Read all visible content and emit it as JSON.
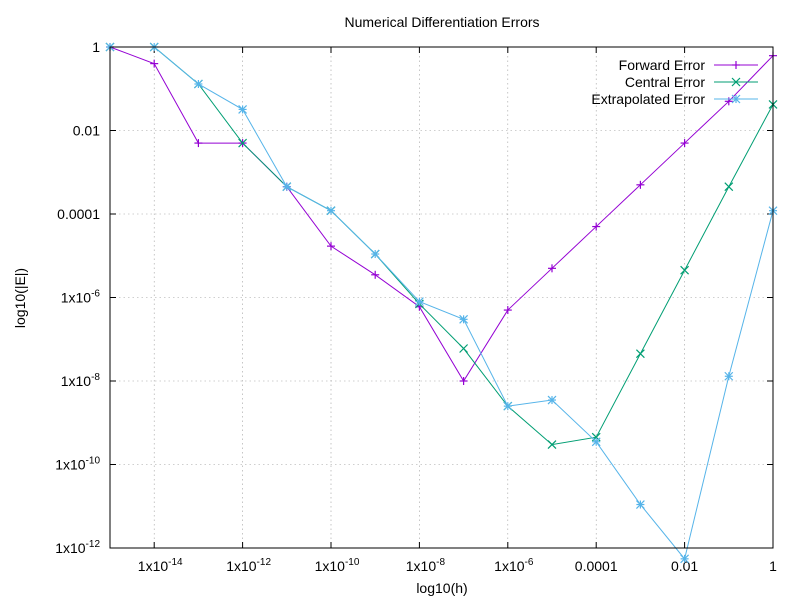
{
  "chart_data": {
    "type": "line",
    "title": "Numerical Differentiation Errors",
    "xlabel": "log10(h)",
    "ylabel": "log10(|E|)",
    "x_scale": "log",
    "y_scale": "log",
    "xlim": [
      1e-15,
      1
    ],
    "ylim": [
      1e-12,
      1
    ],
    "x_ticks": [
      {
        "value": 1e-14,
        "label": "1x10",
        "exp": "-14"
      },
      {
        "value": 1e-12,
        "label": "1x10",
        "exp": "-12"
      },
      {
        "value": 1e-10,
        "label": "1x10",
        "exp": "-10"
      },
      {
        "value": 1e-08,
        "label": "1x10",
        "exp": "-8"
      },
      {
        "value": 1e-06,
        "label": "1x10",
        "exp": "-6"
      },
      {
        "value": 0.0001,
        "label": "0.0001",
        "exp": ""
      },
      {
        "value": 0.01,
        "label": "0.01",
        "exp": ""
      },
      {
        "value": 1,
        "label": "1",
        "exp": ""
      }
    ],
    "y_ticks": [
      {
        "value": 1,
        "label": "1",
        "exp": ""
      },
      {
        "value": 0.01,
        "label": "0.01",
        "exp": ""
      },
      {
        "value": 0.0001,
        "label": "0.0001",
        "exp": ""
      },
      {
        "value": 1e-06,
        "label": "1x10",
        "exp": "-6"
      },
      {
        "value": 1e-08,
        "label": "1x10",
        "exp": "-8"
      },
      {
        "value": 1e-10,
        "label": "1x10",
        "exp": "-10"
      },
      {
        "value": 1e-12,
        "label": "1x10",
        "exp": "-12"
      }
    ],
    "grid": true,
    "legend_position": "top-right",
    "series": [
      {
        "name": "Forward Error",
        "color": "#9400d3",
        "marker": "plus",
        "x": [
          1e-15,
          1e-14,
          1e-13,
          1e-12,
          1e-11,
          1e-10,
          1e-09,
          1e-08,
          1e-07,
          1e-06,
          1e-05,
          0.0001,
          0.001,
          0.01,
          0.1,
          1
        ],
        "y": [
          1.0,
          0.4,
          0.005,
          0.005,
          0.00045,
          1.7e-05,
          3.5e-06,
          6e-07,
          1e-08,
          5e-07,
          5e-06,
          5e-05,
          0.0005,
          0.005,
          0.05,
          0.62
        ]
      },
      {
        "name": "Central Error",
        "color": "#009e73",
        "marker": "cross",
        "x": [
          1e-15,
          1e-14,
          1e-13,
          1e-12,
          1e-11,
          1e-10,
          1e-09,
          1e-08,
          1e-07,
          1e-06,
          1e-05,
          0.0001,
          0.001,
          0.01,
          0.1,
          1
        ],
        "y": [
          1.0,
          1.0,
          0.13,
          0.005,
          0.00045,
          0.00012,
          1.1e-05,
          7e-07,
          6e-08,
          2.5e-09,
          3e-10,
          4.5e-10,
          4.5e-08,
          4.5e-06,
          0.00045,
          0.042
        ]
      },
      {
        "name": "Extrapolated Error",
        "color": "#56b4e9",
        "marker": "star",
        "x": [
          1e-15,
          1e-14,
          1e-13,
          1e-12,
          1e-11,
          1e-10,
          1e-09,
          1e-08,
          1e-07,
          1e-06,
          1e-05,
          0.0001,
          0.001,
          0.01,
          0.1,
          1
        ],
        "y": [
          1.0,
          1.0,
          0.13,
          0.032,
          0.00045,
          0.00012,
          1.1e-05,
          8e-07,
          3e-07,
          2.5e-09,
          3.5e-09,
          3.5e-10,
          1.1e-11,
          5.5e-13,
          1.3e-08,
          0.00012
        ]
      }
    ]
  }
}
